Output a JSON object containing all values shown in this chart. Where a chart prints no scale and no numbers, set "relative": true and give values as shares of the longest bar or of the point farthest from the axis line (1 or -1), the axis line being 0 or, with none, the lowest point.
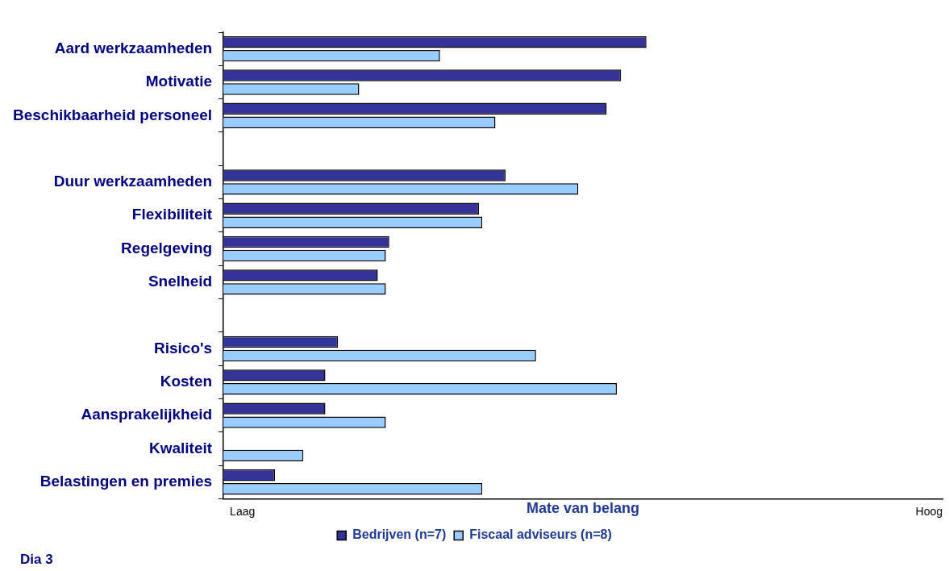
{
  "chart_data": {
    "type": "bar",
    "orientation": "horizontal",
    "relative": true,
    "xlabel": "Mate van belang",
    "categories": [
      "Aard werkzaamheden",
      "Motivatie",
      "Beschikbaarheid personeel",
      null,
      "Duur werkzaamheden",
      "Flexibiliteit",
      "Regelgeving",
      "Snelheid",
      null,
      "Risico's",
      "Kosten",
      "Aansprakelijkheid",
      "Kwaliteit",
      "Belastingen en premies"
    ],
    "series": [
      {
        "name": "Bedrijven (n=7)",
        "color": "#333399",
        "values": [
          1,
          0.94,
          0.906,
          null,
          0.667,
          0.604,
          0.392,
          0.365,
          null,
          0.271,
          0.241,
          0.241,
          null,
          0.122
        ]
      },
      {
        "name": "Fiscaal adviseurs (n=8)",
        "color": "#99ccff",
        "values": [
          0.512,
          0.321,
          0.643,
          null,
          0.839,
          0.612,
          0.384,
          0.384,
          null,
          0.739,
          0.93,
          0.384,
          0.189,
          0.612
        ]
      }
    ],
    "annotations": [
      "Laag",
      "Hoog",
      "Dia 3"
    ],
    "legend": "bottom",
    "grid": false
  }
}
